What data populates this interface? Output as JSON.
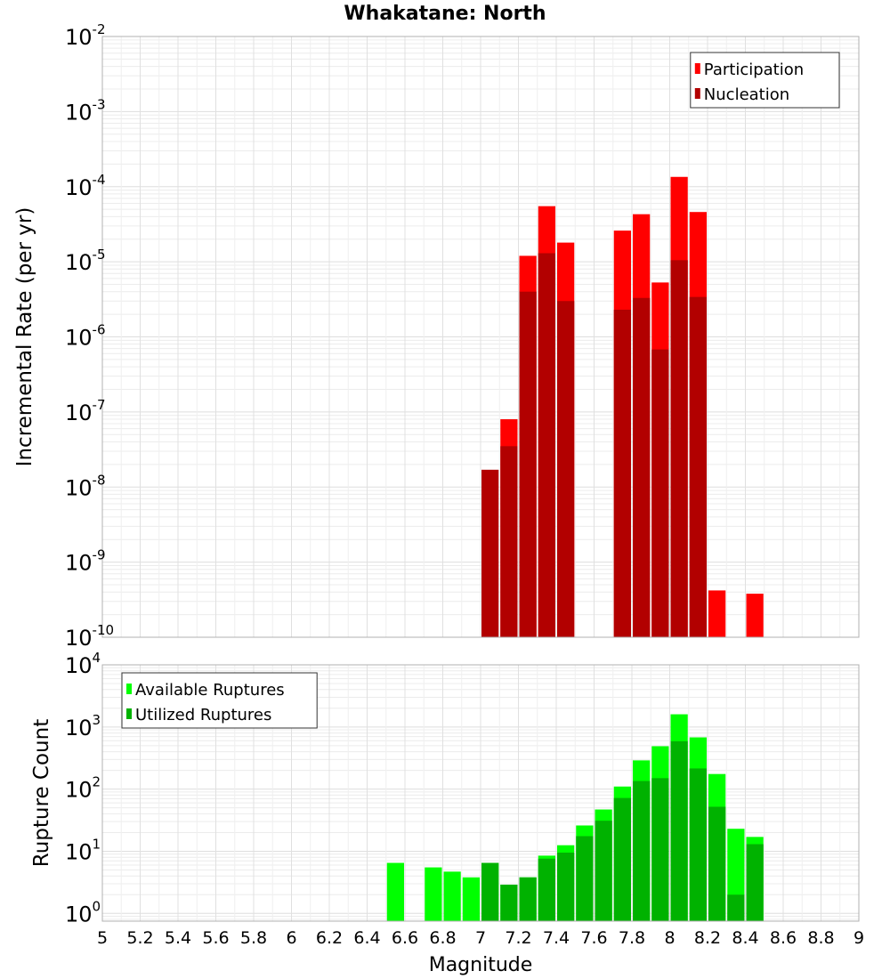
{
  "chart_data": {
    "title": "Whakatane: North",
    "xlabel": "Magnitude",
    "x_ticks": [
      "5",
      "5.2",
      "5.4",
      "5.6",
      "5.8",
      "6",
      "6.2",
      "6.4",
      "6.6",
      "6.8",
      "7",
      "7.2",
      "7.4",
      "7.6",
      "7.8",
      "8",
      "8.2",
      "8.4",
      "8.6",
      "8.8",
      "9"
    ],
    "xlim": [
      5,
      9
    ],
    "bin_width": 0.1,
    "panels": [
      {
        "type": "bar",
        "scale": "log",
        "ylabel": "Incremental Rate (per yr)",
        "ylim": [
          1e-10,
          0.01
        ],
        "y_ticks": [
          {
            "base": "10",
            "exp": "-2"
          },
          {
            "base": "10",
            "exp": "-3"
          },
          {
            "base": "10",
            "exp": "-4"
          },
          {
            "base": "10",
            "exp": "-5"
          },
          {
            "base": "10",
            "exp": "-6"
          },
          {
            "base": "10",
            "exp": "-7"
          },
          {
            "base": "10",
            "exp": "-8"
          },
          {
            "base": "10",
            "exp": "-9"
          },
          {
            "base": "10",
            "exp": "-10"
          }
        ],
        "legend_position": "top-right",
        "series": [
          {
            "name": "Participation",
            "color": "#ff0000",
            "points": [
              {
                "x": 7.15,
                "y": 8e-08
              },
              {
                "x": 7.25,
                "y": 1.2e-05
              },
              {
                "x": 7.35,
                "y": 5.5e-05
              },
              {
                "x": 7.45,
                "y": 1.8e-05
              },
              {
                "x": 7.75,
                "y": 2.6e-05
              },
              {
                "x": 7.85,
                "y": 4.3e-05
              },
              {
                "x": 7.95,
                "y": 5.3e-06
              },
              {
                "x": 8.05,
                "y": 0.000135
              },
              {
                "x": 8.15,
                "y": 4.6e-05
              },
              {
                "x": 8.25,
                "y": 4.2e-10
              },
              {
                "x": 8.45,
                "y": 3.8e-10
              }
            ]
          },
          {
            "name": "Nucleation",
            "color": "#b20000",
            "points": [
              {
                "x": 7.05,
                "y": 1.7e-08
              },
              {
                "x": 7.15,
                "y": 3.5e-08
              },
              {
                "x": 7.25,
                "y": 4e-06
              },
              {
                "x": 7.35,
                "y": 1.3e-05
              },
              {
                "x": 7.45,
                "y": 3e-06
              },
              {
                "x": 7.75,
                "y": 2.3e-06
              },
              {
                "x": 7.85,
                "y": 3.3e-06
              },
              {
                "x": 7.95,
                "y": 6.8e-07
              },
              {
                "x": 8.05,
                "y": 1.05e-05
              },
              {
                "x": 8.15,
                "y": 3.4e-06
              }
            ]
          }
        ]
      },
      {
        "type": "bar",
        "scale": "log",
        "ylabel": "Rupture Count",
        "ylim": [
          0.75,
          10000
        ],
        "y_ticks": [
          {
            "base": "10",
            "exp": "4"
          },
          {
            "base": "10",
            "exp": "3"
          },
          {
            "base": "10",
            "exp": "2"
          },
          {
            "base": "10",
            "exp": "1"
          },
          {
            "base": "10",
            "exp": "0"
          }
        ],
        "legend_position": "top-left",
        "series": [
          {
            "name": "Available Ruptures",
            "color": "#00ff00",
            "points": [
              {
                "x": 6.55,
                "y": 6.5
              },
              {
                "x": 6.75,
                "y": 5.5
              },
              {
                "x": 6.85,
                "y": 4.7
              },
              {
                "x": 6.95,
                "y": 3.8
              },
              {
                "x": 7.05,
                "y": 6.5
              },
              {
                "x": 7.15,
                "y": 2.9
              },
              {
                "x": 7.25,
                "y": 3.8
              },
              {
                "x": 7.35,
                "y": 8.5
              },
              {
                "x": 7.45,
                "y": 12.5
              },
              {
                "x": 7.55,
                "y": 26
              },
              {
                "x": 7.65,
                "y": 47
              },
              {
                "x": 7.75,
                "y": 110
              },
              {
                "x": 7.85,
                "y": 290
              },
              {
                "x": 7.95,
                "y": 490
              },
              {
                "x": 8.05,
                "y": 1600
              },
              {
                "x": 8.15,
                "y": 680
              },
              {
                "x": 8.25,
                "y": 175
              },
              {
                "x": 8.35,
                "y": 23
              },
              {
                "x": 8.45,
                "y": 17
              }
            ]
          },
          {
            "name": "Utilized Ruptures",
            "color": "#00b200",
            "points": [
              {
                "x": 7.05,
                "y": 6.5
              },
              {
                "x": 7.15,
                "y": 2.9
              },
              {
                "x": 7.25,
                "y": 3.8
              },
              {
                "x": 7.35,
                "y": 7.6
              },
              {
                "x": 7.45,
                "y": 9.5
              },
              {
                "x": 7.55,
                "y": 17.5
              },
              {
                "x": 7.65,
                "y": 31
              },
              {
                "x": 7.75,
                "y": 72
              },
              {
                "x": 7.85,
                "y": 135
              },
              {
                "x": 7.95,
                "y": 150
              },
              {
                "x": 8.05,
                "y": 590
              },
              {
                "x": 8.15,
                "y": 215
              },
              {
                "x": 8.25,
                "y": 52
              },
              {
                "x": 8.35,
                "y": 2
              },
              {
                "x": 8.45,
                "y": 13
              }
            ]
          }
        ]
      }
    ]
  }
}
